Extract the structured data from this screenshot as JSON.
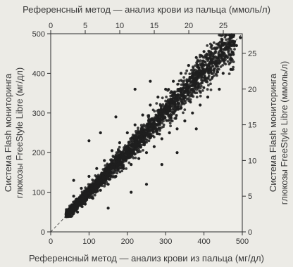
{
  "chart_data": {
    "type": "scatter",
    "top_xlabel": "Референсный метод — анализ крови из пальца (ммоль/л)",
    "bottom_xlabel": "Референсный метод — анализ крови из пальца (мг/дл)",
    "left_ylabel": [
      "Система Flash мониторинга",
      "глюкозы FreeStyle Libre (мг/дл)"
    ],
    "right_ylabel": [
      "Система Flash мониторинга",
      "глюкозы FreeStyle Libre (ммоль/л)"
    ],
    "x_mgdl": {
      "lim": [
        0,
        500
      ],
      "ticks": [
        "0",
        "100",
        "200",
        "300",
        "400",
        "500"
      ]
    },
    "x_mmol": {
      "lim": [
        0,
        27.75
      ],
      "ticks": [
        "0",
        "5",
        "10",
        "15",
        "20",
        "25"
      ]
    },
    "y_mgdl": {
      "lim": [
        0,
        500
      ],
      "ticks": [
        "0",
        "100",
        "200",
        "300",
        "400",
        "500"
      ]
    },
    "y_mmol": {
      "lim": [
        0,
        27.75
      ],
      "ticks": [
        "0",
        "5",
        "10",
        "15",
        "20",
        "25"
      ]
    },
    "identity_line": true,
    "grid": false,
    "point_color": "#1f1f1f",
    "series": [
      {
        "points": [
          [
            40,
            45
          ],
          [
            45,
            55
          ],
          [
            50,
            48
          ],
          [
            55,
            60
          ],
          [
            60,
            58
          ],
          [
            65,
            70
          ],
          [
            70,
            75
          ],
          [
            75,
            80
          ],
          [
            80,
            85
          ],
          [
            85,
            90
          ],
          [
            90,
            95
          ],
          [
            95,
            100
          ],
          [
            100,
            105
          ],
          [
            105,
            110
          ],
          [
            110,
            118
          ],
          [
            115,
            120
          ],
          [
            120,
            125
          ],
          [
            125,
            130
          ],
          [
            130,
            138
          ],
          [
            135,
            140
          ],
          [
            140,
            145
          ],
          [
            145,
            150
          ],
          [
            150,
            158
          ],
          [
            155,
            160
          ],
          [
            160,
            165
          ],
          [
            165,
            170
          ],
          [
            170,
            178
          ],
          [
            175,
            180
          ],
          [
            180,
            185
          ],
          [
            185,
            190
          ],
          [
            190,
            198
          ],
          [
            195,
            200
          ],
          [
            200,
            205
          ],
          [
            205,
            210
          ],
          [
            210,
            218
          ],
          [
            215,
            220
          ],
          [
            220,
            225
          ],
          [
            225,
            230
          ],
          [
            230,
            238
          ],
          [
            235,
            240
          ],
          [
            240,
            245
          ],
          [
            245,
            250
          ],
          [
            250,
            258
          ],
          [
            255,
            260
          ],
          [
            260,
            265
          ],
          [
            270,
            275
          ],
          [
            280,
            285
          ],
          [
            290,
            295
          ],
          [
            300,
            305
          ],
          [
            310,
            315
          ],
          [
            320,
            325
          ],
          [
            330,
            335
          ],
          [
            340,
            345
          ],
          [
            350,
            355
          ],
          [
            360,
            365
          ],
          [
            380,
            385
          ],
          [
            400,
            405
          ],
          [
            420,
            425
          ],
          [
            440,
            445
          ],
          [
            460,
            465
          ],
          [
            480,
            480
          ],
          [
            495,
            490
          ],
          [
            60,
            90
          ],
          [
            70,
            50
          ],
          [
            80,
            110
          ],
          [
            90,
            70
          ],
          [
            100,
            140
          ],
          [
            110,
            85
          ],
          [
            120,
            160
          ],
          [
            130,
            105
          ],
          [
            140,
            180
          ],
          [
            150,
            120
          ],
          [
            160,
            205
          ],
          [
            170,
            140
          ],
          [
            180,
            225
          ],
          [
            190,
            160
          ],
          [
            200,
            250
          ],
          [
            210,
            170
          ],
          [
            220,
            270
          ],
          [
            230,
            185
          ],
          [
            240,
            295
          ],
          [
            250,
            200
          ],
          [
            260,
            320
          ],
          [
            270,
            215
          ],
          [
            280,
            340
          ],
          [
            290,
            235
          ],
          [
            300,
            360
          ],
          [
            310,
            250
          ],
          [
            320,
            380
          ],
          [
            330,
            260
          ],
          [
            340,
            400
          ],
          [
            350,
            280
          ],
          [
            360,
            420
          ],
          [
            370,
            300
          ],
          [
            380,
            440
          ],
          [
            390,
            320
          ],
          [
            400,
            455
          ],
          [
            410,
            340
          ],
          [
            420,
            470
          ],
          [
            440,
            360
          ],
          [
            450,
            400
          ],
          [
            470,
            410
          ],
          [
            485,
            470
          ],
          [
            100,
            230
          ],
          [
            210,
            100
          ],
          [
            130,
            250
          ],
          [
            250,
            120
          ],
          [
            220,
            360
          ],
          [
            330,
            200
          ],
          [
            170,
            290
          ],
          [
            290,
            170
          ],
          [
            260,
            380
          ],
          [
            380,
            260
          ],
          [
            150,
            60
          ],
          [
            60,
            130
          ]
        ]
      }
    ]
  }
}
